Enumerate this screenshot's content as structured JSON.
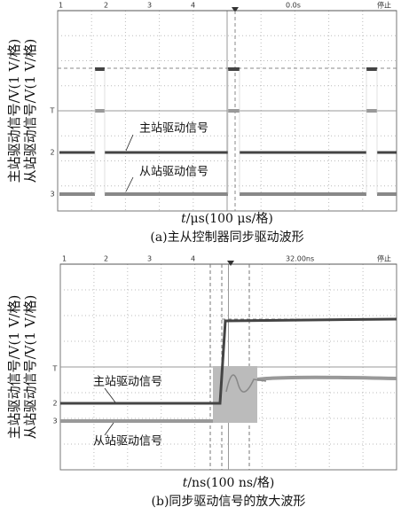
{
  "panels": [
    {
      "top_labels": [
        "1",
        "2",
        "3",
        "4",
        "0.0s",
        "停止"
      ],
      "channel_markers": [
        "T",
        "2",
        "3"
      ],
      "y_labels": [
        "主站驱动信号/V(1 V/格)",
        "从站驱动信号/V(1 V/格)"
      ],
      "annotations": [
        "主站驱动信号",
        "从站驱动信号"
      ],
      "x_label": {
        "variable": "t",
        "rest": "/μs(100 μs/格)"
      },
      "caption": "(a)主从控制器同步驱动波形"
    },
    {
      "top_labels": [
        "1",
        "2",
        "3",
        "4",
        "32.00ns",
        "停止"
      ],
      "channel_markers": [
        "T",
        "2",
        "3"
      ],
      "y_labels": [
        "主站驱动信号/V(1 V/格)",
        "从站驱动信号/V(1 V/格)"
      ],
      "annotations": [
        "主站驱动信号",
        "从站驱动信号"
      ],
      "x_label": {
        "variable": "t",
        "rest": "/ns(100 ns/格)"
      },
      "caption": "(b)同步驱动信号的放大波形"
    }
  ]
}
